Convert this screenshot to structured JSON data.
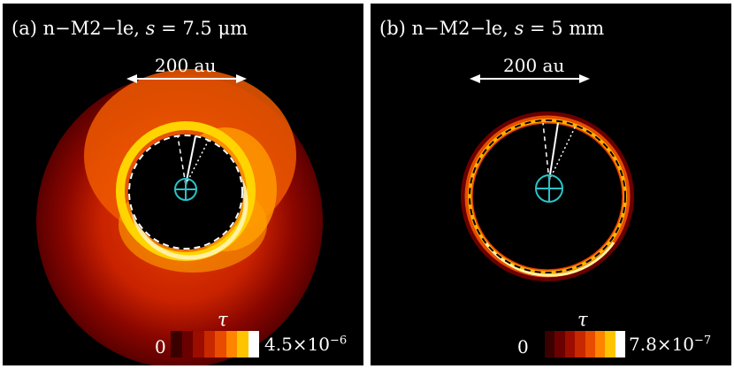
{
  "panels": [
    {
      "id": "a",
      "title_prefix": "(a) n−M2−le, ",
      "title_var": "s",
      "title_suffix": " = 7.5 μm",
      "scale_label": "200 au",
      "colorbar": {
        "symbol": "τ",
        "min_label": "0",
        "max_label": "4.5×10",
        "max_exp": "−6",
        "colors": [
          "#3a0000",
          "#6a0000",
          "#9c0d00",
          "#c82800",
          "#e84c00",
          "#ff8400",
          "#ffc400",
          "#ffffff"
        ]
      }
    },
    {
      "id": "b",
      "title_prefix": "(b) n−M2−le, ",
      "title_var": "s",
      "title_suffix": " = 5 mm",
      "scale_label": "200 au",
      "colorbar": {
        "symbol": "τ",
        "min_label": "0",
        "max_label": "7.8×10",
        "max_exp": "−7",
        "colors": [
          "#3a0000",
          "#6a0000",
          "#9c0d00",
          "#c82800",
          "#e84c00",
          "#ff8400",
          "#ffc400",
          "#ffffff"
        ]
      }
    }
  ],
  "colors": {
    "background": "#000000",
    "star_marker": "#29c3c8",
    "orbit": "#000000"
  }
}
